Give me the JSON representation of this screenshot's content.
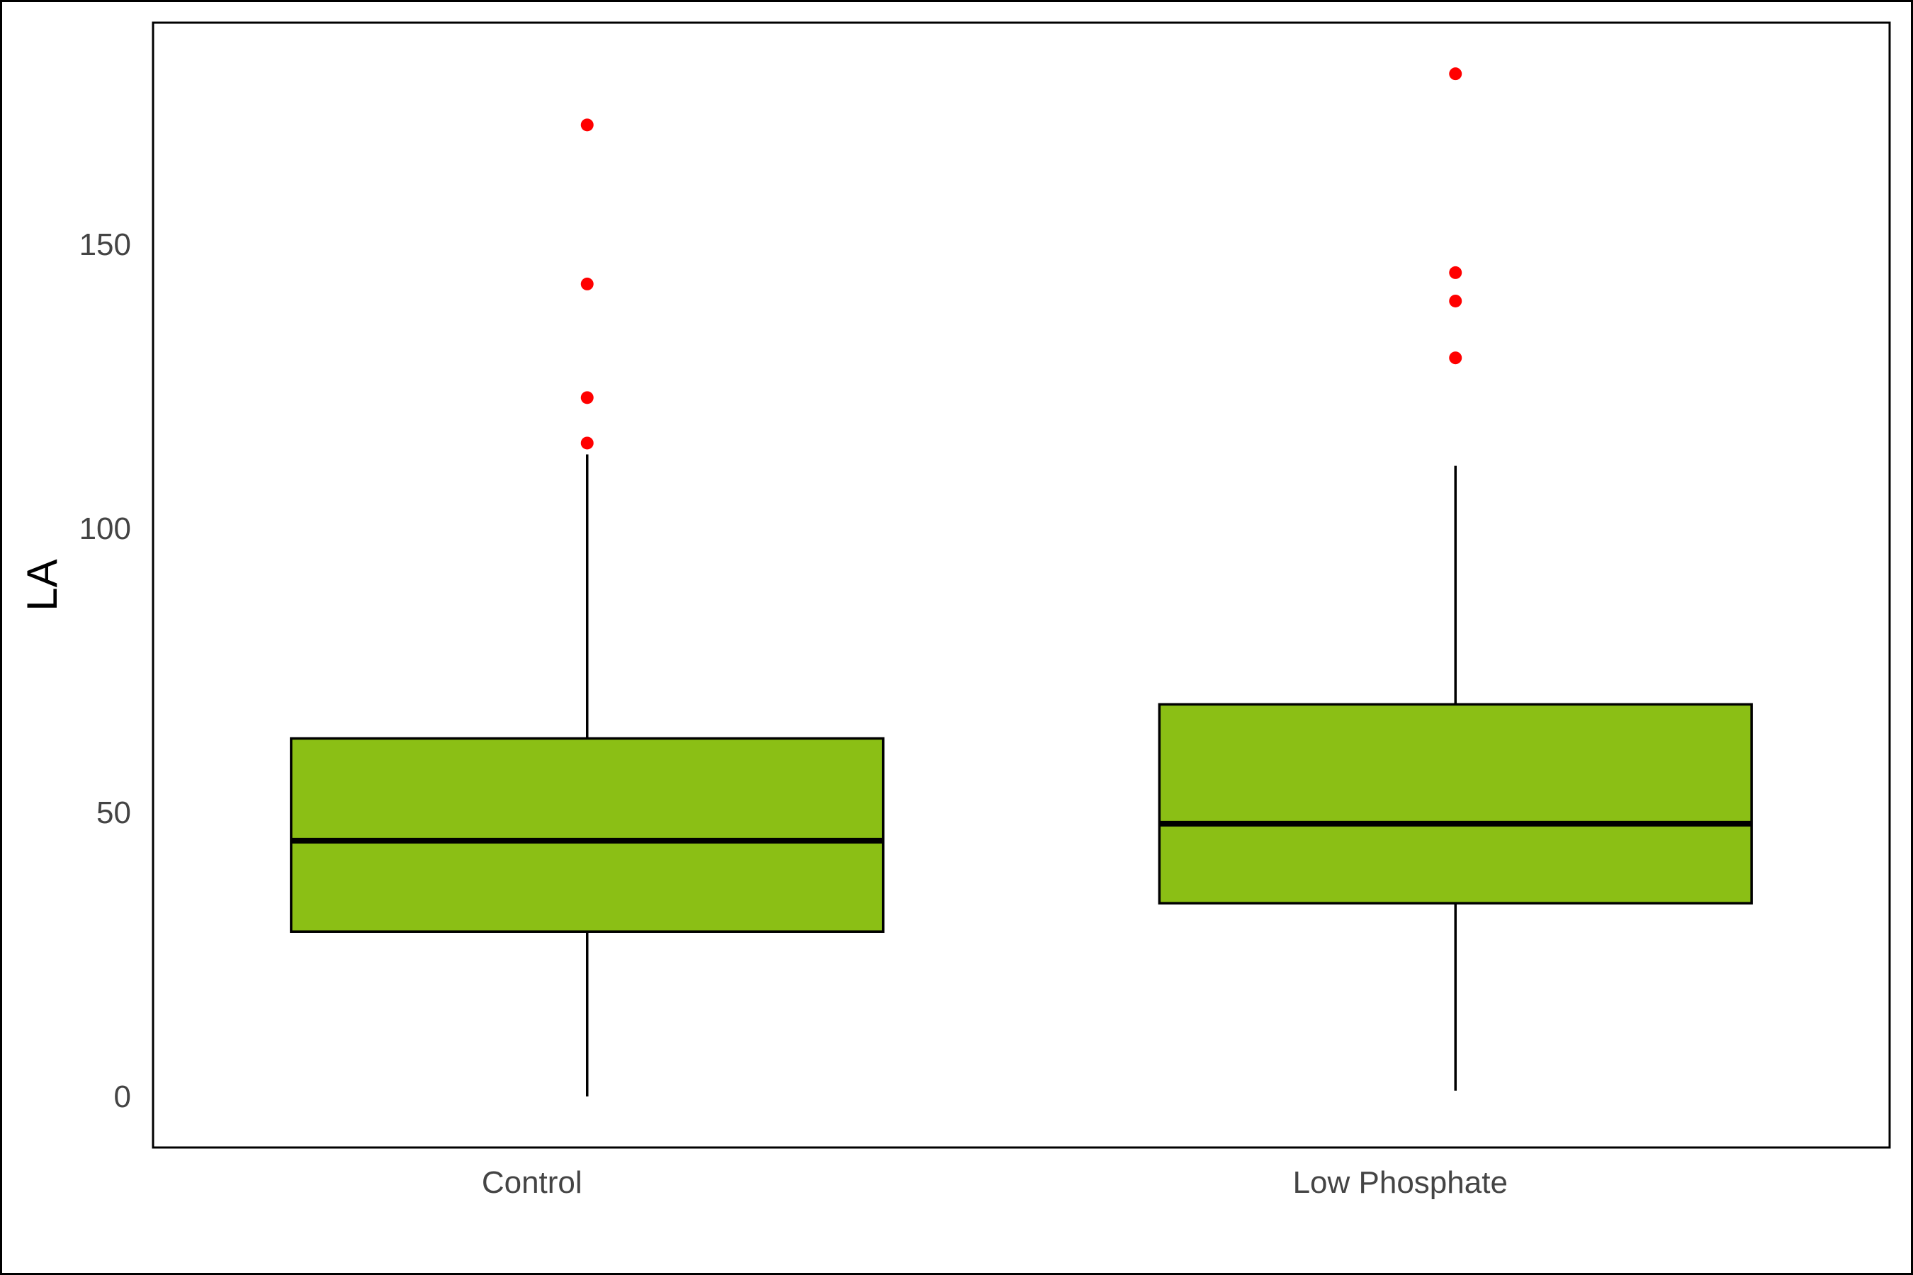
{
  "chart_data": {
    "type": "boxplot",
    "title": "",
    "xlabel": "",
    "ylabel": "LA",
    "ylim": [
      -9,
      189
    ],
    "yticks": [
      0,
      50,
      100,
      150
    ],
    "grid": false,
    "legend": "none",
    "colors": {
      "box_fill": "#8BBF15",
      "outlier": "#FF0000",
      "stroke": "#000000",
      "tick_text": "#444444"
    },
    "categories": [
      "Control",
      "Low Phosphate"
    ],
    "series": [
      {
        "category": "Control",
        "whisker_low": 0,
        "q1": 29,
        "median": 45,
        "q3": 63,
        "whisker_high": 113,
        "outliers": [
          115,
          123,
          143,
          171
        ]
      },
      {
        "category": "Low Phosphate",
        "whisker_low": 1,
        "q1": 34,
        "median": 48,
        "q3": 69,
        "whisker_high": 111,
        "outliers": [
          130,
          140,
          145,
          180
        ]
      }
    ]
  }
}
